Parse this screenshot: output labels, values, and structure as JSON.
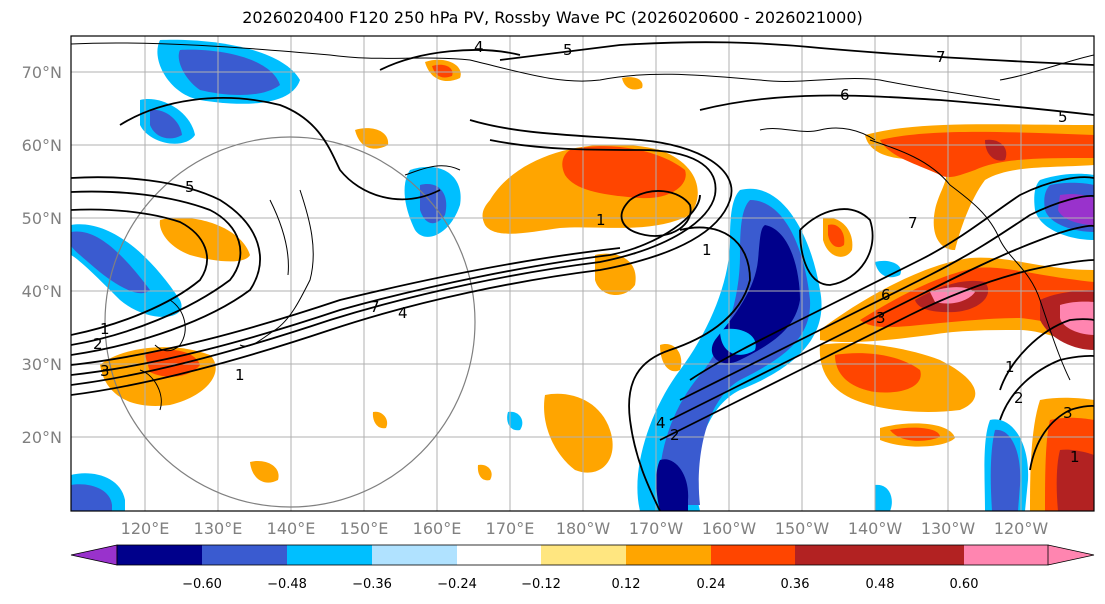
{
  "title": "2026020400 F120 250 hPa PV, Rossby Wave PC (2026020600 - 2026021000)",
  "map": {
    "lat_labels": [
      "70°N",
      "60°N",
      "50°N",
      "40°N",
      "30°N",
      "20°N"
    ],
    "lon_labels": [
      "120°E",
      "130°E",
      "140°E",
      "150°E",
      "160°E",
      "170°E",
      "180°W",
      "170°W",
      "160°W",
      "150°W",
      "140°W",
      "130°W",
      "120°W"
    ],
    "contour_labels": [
      "4",
      "5",
      "7",
      "6",
      "5",
      "5",
      "7",
      "1",
      "7",
      "4",
      "1",
      "2",
      "3",
      "1",
      "1",
      "6",
      "3",
      "4",
      "2",
      "1",
      "2",
      "3",
      "1"
    ]
  },
  "colorbar": {
    "ticks": [
      "−0.60",
      "−0.48",
      "−0.36",
      "−0.24",
      "−0.12",
      "0.12",
      "0.24",
      "0.36",
      "0.48",
      "0.60"
    ],
    "colors": [
      "#9932cc",
      "#00008b",
      "#3a5bd0",
      "#00bfff",
      "#b0e2ff",
      "#ffffff",
      "#ffe680",
      "#ffa500",
      "#ff4500",
      "#b22222",
      "#ff85b0"
    ]
  }
}
